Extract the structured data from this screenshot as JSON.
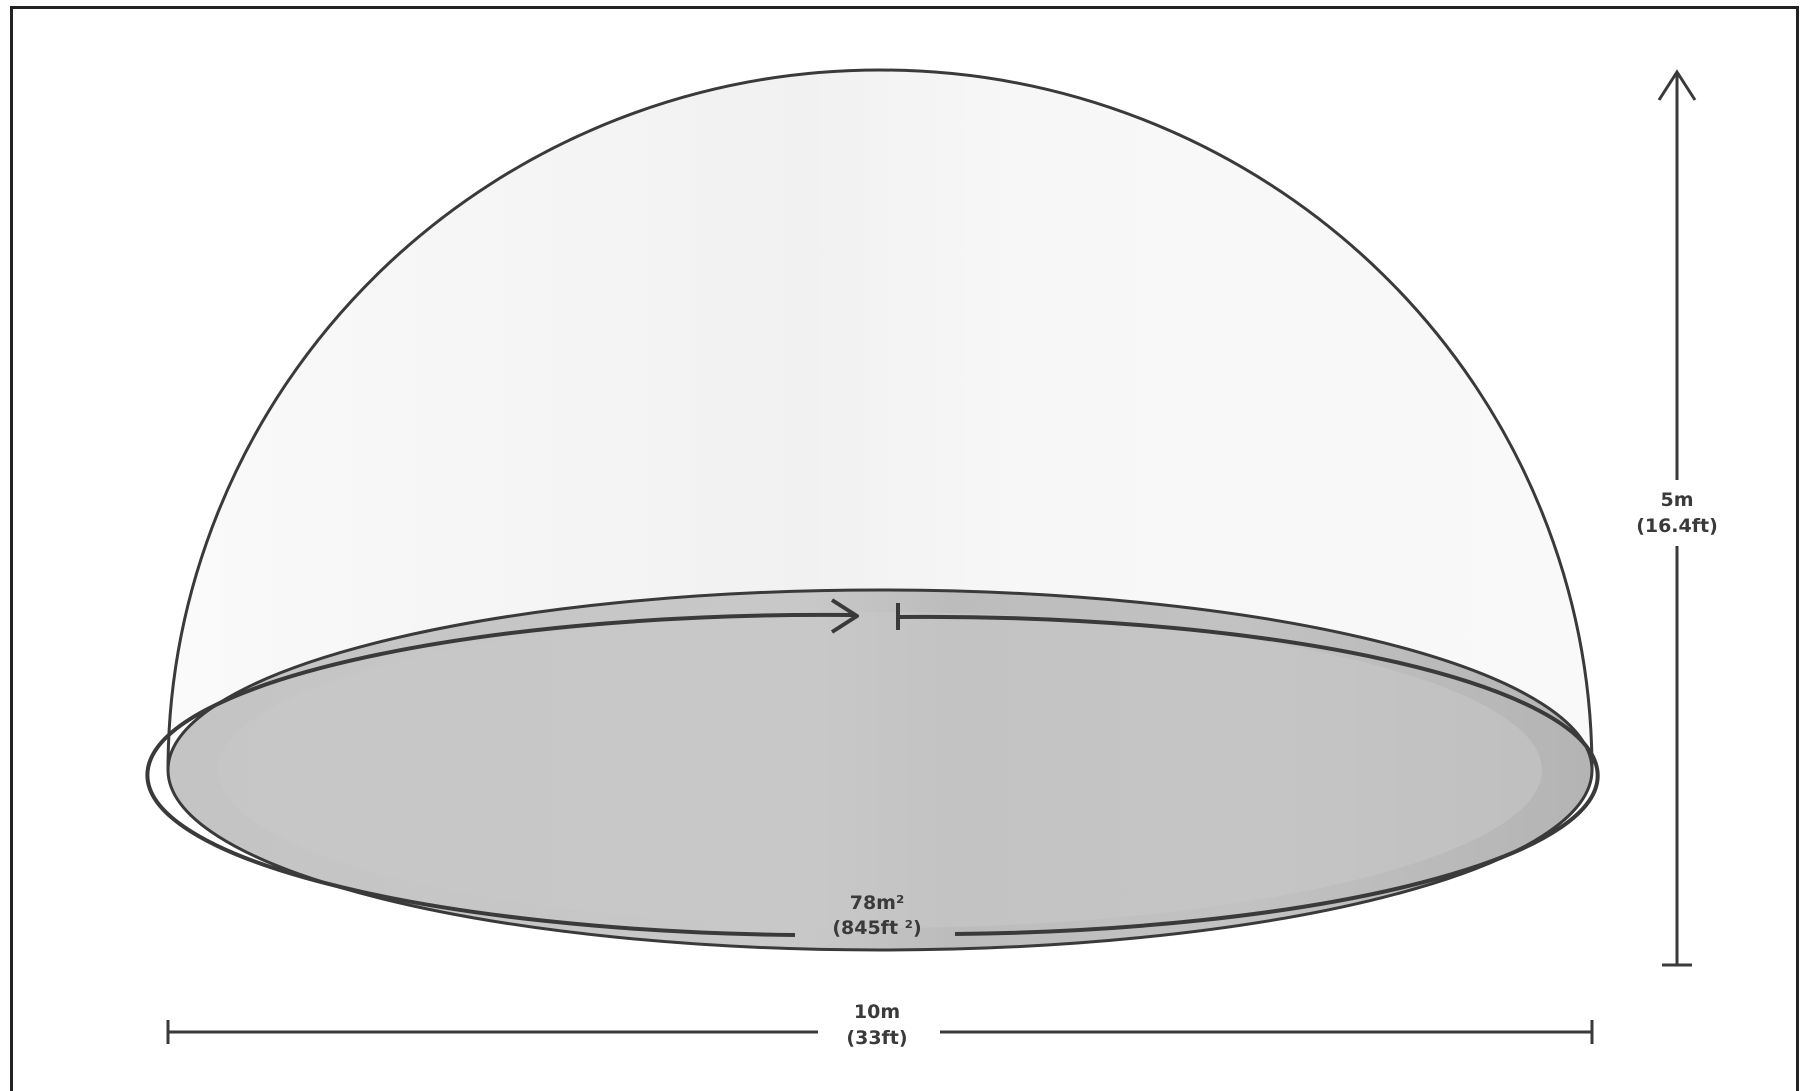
{
  "diagram": {
    "height_label": {
      "metric": "5m",
      "imperial": "(16.4ft)"
    },
    "width_label": {
      "metric": "10m",
      "imperial": "(33ft)"
    },
    "area_label": {
      "metric": "78m²",
      "imperial": "(845ft ²)"
    }
  },
  "colors": {
    "dome_outline": "#3a3a3a",
    "dome_fill": "#f7f7f7",
    "floor_fill": "#bdbdbd",
    "floor_inner": "#c9c9c9",
    "line": "#3a3a3a"
  }
}
